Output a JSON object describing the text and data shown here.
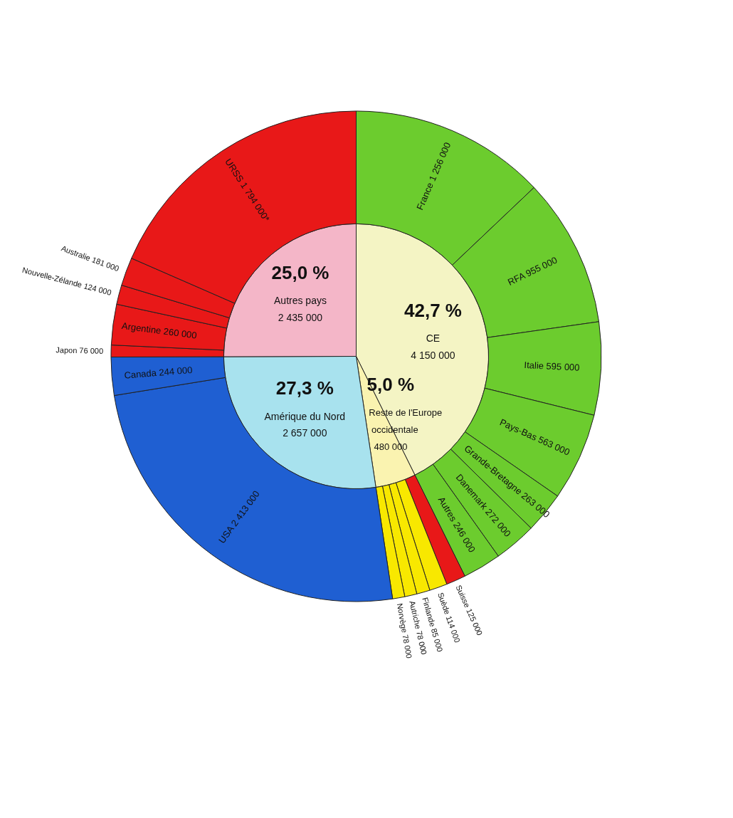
{
  "chart_data": {
    "type": "pie",
    "categories": [
      "CE",
      "Reste de l'Europe occidentale",
      "Amérique du Nord",
      "Autres pays",
      "France",
      "RFA",
      "Italie",
      "Pays-Bas",
      "Grande-Bretagne",
      "Danemark",
      "Autres",
      "Suisse",
      "Suède",
      "Finlande",
      "Autriche",
      "Norvège",
      "USA",
      "Canada",
      "Japon",
      "Argentine",
      "Nouvelle-Zélande",
      "Australie",
      "URSS"
    ],
    "colors": [
      "#f4f4c4",
      "#faf3b0",
      "#a8e2ee",
      "#f4b6c8",
      "#6ccc2e",
      "#6ccc2e",
      "#6ccc2e",
      "#6ccc2e",
      "#6ccc2e",
      "#6ccc2e",
      "#6ccc2e",
      "#e81818",
      "#f8e800",
      "#f8e800",
      "#f8e800",
      "#f8e800",
      "#1f5fd2",
      "#1f5fd2",
      "#e81818",
      "#e81818",
      "#e81818",
      "#e81818",
      "#e81818"
    ],
    "series": [
      {
        "values": [
          4150000,
          480000,
          2657000,
          2435000,
          null,
          null,
          null,
          null,
          null,
          null,
          null,
          null,
          null,
          null,
          null,
          null,
          null,
          null,
          null,
          null,
          null,
          null,
          null
        ],
        "value_labels": [
          "4 150 000",
          "480 000",
          "2 657 000",
          "2 435 000",
          null,
          null,
          null,
          null,
          null,
          null,
          null,
          null,
          null,
          null,
          null,
          null,
          null,
          null,
          null,
          null,
          null,
          null,
          null
        ]
      },
      {
        "values": [
          null,
          null,
          null,
          null,
          1256000,
          955000,
          595000,
          563000,
          263000,
          272000,
          246000,
          125000,
          114000,
          85000,
          78000,
          78000,
          2413000,
          244000,
          76000,
          260000,
          124000,
          181000,
          1794000
        ],
        "value_labels": [
          null,
          null,
          null,
          null,
          "1 256 000",
          "955 000",
          "595 000",
          "563 000",
          "263 000",
          "272 000",
          "246 000",
          "125 000",
          "114 000",
          "85 000",
          "78 000",
          "78 000",
          "2 413 000",
          "244 000",
          "76 000",
          "260 000",
          "124 000",
          "181 000",
          "1 794 000*"
        ]
      }
    ],
    "annotations": [
      {
        "text": "42,7 %",
        "x": "CE"
      },
      {
        "text": "5,0 %",
        "x": "Reste de l'Europe occidentale"
      },
      {
        "text": "27,3 %",
        "x": "Amérique du Nord"
      },
      {
        "text": "25,0 %",
        "x": "Autres pays"
      }
    ]
  }
}
